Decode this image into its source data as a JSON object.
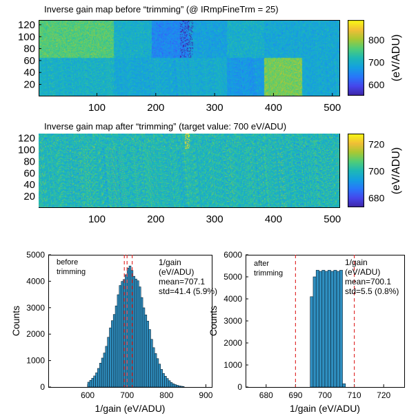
{
  "chart_data": [
    {
      "type": "heatmap",
      "title": "Inverse gain map before “trimming” (@ IRmpFineTrm = 25)",
      "x_ticks": [
        "100",
        "200",
        "300",
        "400",
        "500"
      ],
      "y_ticks": [
        "120",
        "100",
        "80",
        "60",
        "40",
        "20"
      ],
      "xlim": [
        1,
        512
      ],
      "ylim": [
        1,
        128
      ],
      "colorbar": {
        "ticks": [
          "800",
          "700",
          "600"
        ],
        "label": "(eV/ADU)",
        "range": [
          550,
          890
        ],
        "colormap": "parula"
      },
      "block_means_top_row": [
        760,
        700,
        650,
        680,
        700,
        690,
        690
      ],
      "block_means_bottom_row": [
        705,
        690,
        690,
        695,
        670,
        780,
        690
      ],
      "block_boundaries_x": [
        128,
        192,
        256,
        320,
        384,
        448
      ]
    },
    {
      "type": "heatmap",
      "title": "Inverse gain map after “trimming” (target value: 700 eV/ADU)",
      "x_ticks": [
        "100",
        "200",
        "300",
        "400",
        "500"
      ],
      "y_ticks": [
        "120",
        "100",
        "80",
        "60",
        "40",
        "20"
      ],
      "xlim": [
        1,
        512
      ],
      "ylim": [
        1,
        128
      ],
      "colorbar": {
        "ticks": [
          "720",
          "700",
          "680"
        ],
        "label": "(eV/ADU)",
        "range": [
          673,
          728
        ],
        "colormap": "parula"
      },
      "mean": 700
    },
    {
      "type": "bar",
      "subtype": "histogram",
      "inset_label": "before\ntrimming",
      "stats": [
        "1/gain",
        "(eV/ADU)",
        "mean=707.1",
        "std=41.4 (5.9%)"
      ],
      "mean": 707.1,
      "std": 41.4,
      "xlabel": "1/gain (eV/ADU)",
      "ylabel": "Counts",
      "xlim": [
        500,
        915
      ],
      "ylim": [
        0,
        5000
      ],
      "x_ticks": [
        "600",
        "700",
        "800",
        "900"
      ],
      "y_ticks": [
        "5000",
        "4000",
        "3000",
        "2000",
        "1000",
        "0"
      ],
      "bin_width": 5,
      "peak_count": 4450,
      "reference_lines": [
        693,
        700,
        713
      ]
    },
    {
      "type": "bar",
      "subtype": "histogram",
      "inset_label": "after\ntrimming",
      "stats": [
        "1/gain",
        "(eV/ADU)",
        "mean=700.1",
        "std=5.5 (0.8%)"
      ],
      "mean": 700.1,
      "xlabel": "1/gain (eV/ADU)",
      "ylabel": "Counts",
      "xlim": [
        673,
        727
      ],
      "ylim": [
        0,
        6000
      ],
      "x_ticks": [
        "680",
        "690",
        "700",
        "710",
        "720"
      ],
      "y_ticks": [
        "6000",
        "5000",
        "4000",
        "3000",
        "2000",
        "1000",
        "0"
      ],
      "bins": [
        {
          "x": 695,
          "count": 4100
        },
        {
          "x": 696,
          "count": 5000
        },
        {
          "x": 697,
          "count": 5300
        },
        {
          "x": 698,
          "count": 5250
        },
        {
          "x": 699,
          "count": 5300
        },
        {
          "x": 700,
          "count": 5250
        },
        {
          "x": 701,
          "count": 5300
        },
        {
          "x": 702,
          "count": 5250
        },
        {
          "x": 703,
          "count": 5300
        },
        {
          "x": 704,
          "count": 5250
        },
        {
          "x": 705,
          "count": 5300
        },
        {
          "x": 706,
          "count": 150
        }
      ],
      "reference_lines": [
        690,
        710
      ]
    }
  ],
  "colors": {
    "bar_fill": "#2f8fc0",
    "bar_edge": "#0b2233",
    "reference_line": "#e03030"
  }
}
